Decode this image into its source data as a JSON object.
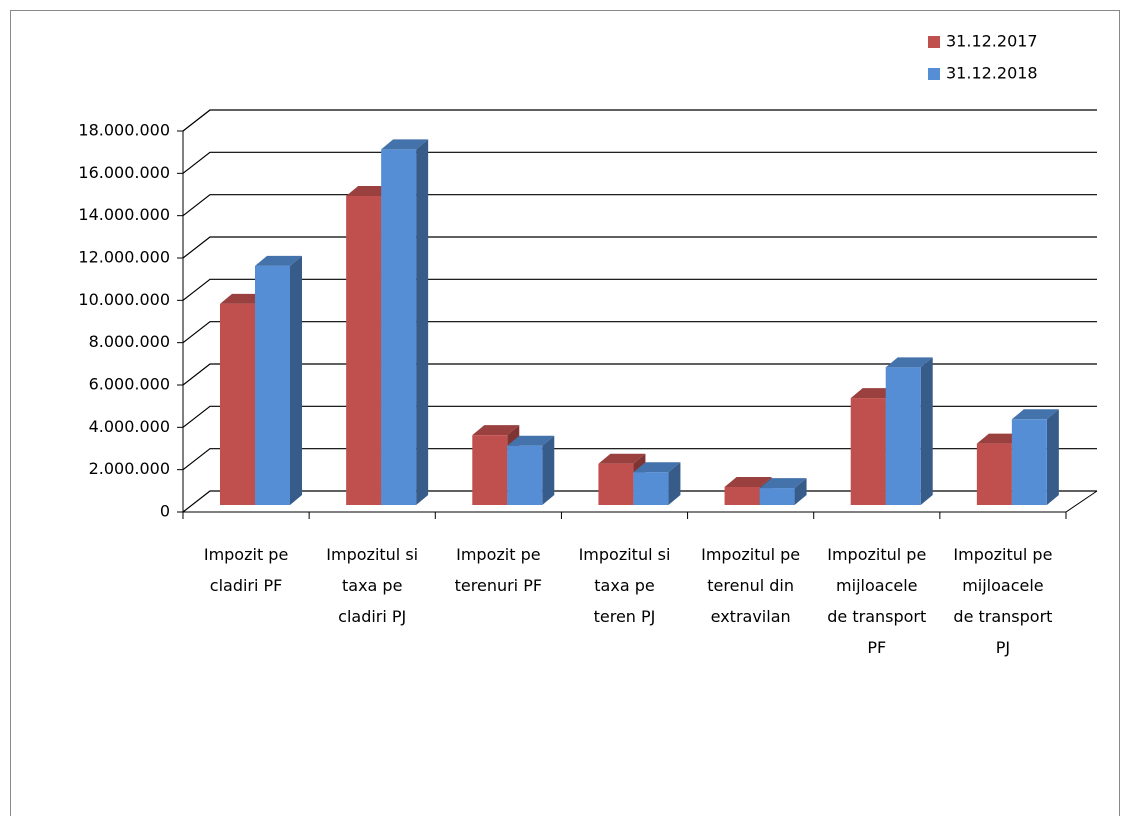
{
  "chart_data": {
    "type": "bar3d",
    "categories": [
      "Impozit pe cladiri PF",
      "Impozitul si taxa pe cladiri PJ",
      "Impozit pe terenuri PF",
      "Impozitul si taxa pe teren PJ",
      "Impozitul pe terenul din extravilan",
      "Impozitul pe mijloacele de transport PF",
      "Impozitul pe mijloacele de transport PJ"
    ],
    "series": [
      {
        "name": "31.12.2017",
        "color": "#c0504d",
        "values": [
          9500000,
          14600000,
          3300000,
          1950000,
          850000,
          5050000,
          2900000
        ]
      },
      {
        "name": "31.12.2018",
        "color": "#558ed5",
        "values": [
          11300000,
          16800000,
          2800000,
          1550000,
          800000,
          6500000,
          4050000
        ]
      }
    ],
    "ylim": [
      0,
      18000000
    ],
    "yticks": [
      0,
      {
        "value": 2000000,
        "label": "2.000.000"
      },
      {
        "value": 4000000,
        "label": "4.000.000"
      },
      {
        "value": 6000000,
        "label": "6.000.000"
      },
      {
        "value": 8000000,
        "label": "8.000.000"
      },
      {
        "value": 10000000,
        "label": "10.000.000"
      },
      {
        "value": 12000000,
        "label": "12.000.000"
      },
      {
        "value": 14000000,
        "label": "14.000.000"
      },
      {
        "value": 16000000,
        "label": "16.000.000"
      },
      {
        "value": 18000000,
        "label": "18.000.000"
      }
    ],
    "grid": true,
    "legend": "top-right"
  }
}
